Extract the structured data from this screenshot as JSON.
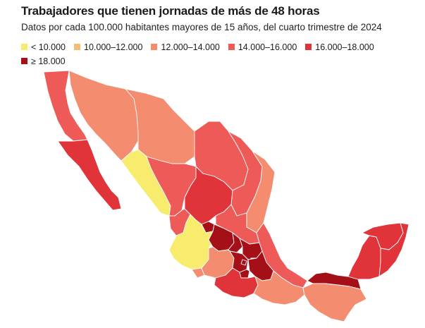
{
  "title": "Trabajadores que tienen jornadas de más de 48 horas",
  "subtitle": "Datos por cada 100.000 habitantes mayores de 15 años, del cuarto trimestre de 2024",
  "legend": [
    {
      "label": "< 10.000",
      "color": "#f7ec6e"
    },
    {
      "label": "10.000–12.000",
      "color": "#f6bb74"
    },
    {
      "label": "12.000–14.000",
      "color": "#f48d6f"
    },
    {
      "label": "14.000–16.000",
      "color": "#ee5a57"
    },
    {
      "label": "16.000–18.000",
      "color": "#e0333a"
    },
    {
      "label": "≥ 18.000",
      "color": "#a50f17"
    }
  ],
  "map": {
    "regions": [
      {
        "name": "baja-california",
        "class": "14.000–16.000",
        "color": "#ee5a57"
      },
      {
        "name": "baja-california-sur",
        "class": "16.000–18.000",
        "color": "#e0333a"
      },
      {
        "name": "sonora",
        "class": "12.000–14.000",
        "color": "#f48d6f"
      },
      {
        "name": "chihuahua",
        "class": "12.000–14.000",
        "color": "#f48d6f"
      },
      {
        "name": "coahuila",
        "class": "14.000–16.000",
        "color": "#ee5a57"
      },
      {
        "name": "nuevo-leon",
        "class": "14.000–16.000",
        "color": "#ee5a57"
      },
      {
        "name": "tamaulipas",
        "class": "12.000–14.000",
        "color": "#f48d6f"
      },
      {
        "name": "sinaloa",
        "class": "< 10.000",
        "color": "#f7ec6e"
      },
      {
        "name": "durango",
        "class": "14.000–16.000",
        "color": "#ee5a57"
      },
      {
        "name": "zacatecas",
        "class": "16.000–18.000",
        "color": "#e0333a"
      },
      {
        "name": "nayarit",
        "class": "14.000–16.000",
        "color": "#ee5a57"
      },
      {
        "name": "aguascalientes",
        "class": "≥ 18.000",
        "color": "#a50f17"
      },
      {
        "name": "san-luis-potosi",
        "class": "14.000–16.000",
        "color": "#ee5a57"
      },
      {
        "name": "jalisco",
        "class": "< 10.000",
        "color": "#f7ec6e"
      },
      {
        "name": "guanajuato",
        "class": "≥ 18.000",
        "color": "#a50f17"
      },
      {
        "name": "queretaro",
        "class": "≥ 18.000",
        "color": "#a50f17"
      },
      {
        "name": "hidalgo",
        "class": "≥ 18.000",
        "color": "#a50f17"
      },
      {
        "name": "veracruz",
        "class": "14.000–16.000",
        "color": "#ee5a57"
      },
      {
        "name": "colima",
        "class": "12.000–14.000",
        "color": "#f48d6f"
      },
      {
        "name": "michoacan",
        "class": "12.000–14.000",
        "color": "#f48d6f"
      },
      {
        "name": "estado-de-mexico",
        "class": "≥ 18.000",
        "color": "#a50f17"
      },
      {
        "name": "ciudad-de-mexico",
        "class": "≥ 18.000",
        "color": "#a50f17"
      },
      {
        "name": "tlaxcala",
        "class": "≥ 18.000",
        "color": "#a50f17"
      },
      {
        "name": "puebla",
        "class": "≥ 18.000",
        "color": "#a50f17"
      },
      {
        "name": "morelos",
        "class": "≥ 18.000",
        "color": "#a50f17"
      },
      {
        "name": "guerrero",
        "class": "16.000–18.000",
        "color": "#e0333a"
      },
      {
        "name": "oaxaca",
        "class": "12.000–14.000",
        "color": "#f48d6f"
      },
      {
        "name": "chiapas",
        "class": "12.000–14.000",
        "color": "#f48d6f"
      },
      {
        "name": "tabasco",
        "class": "≥ 18.000",
        "color": "#a50f17"
      },
      {
        "name": "campeche",
        "class": "16.000–18.000",
        "color": "#e0333a"
      },
      {
        "name": "yucatan",
        "class": "16.000–18.000",
        "color": "#e0333a"
      },
      {
        "name": "quintana-roo",
        "class": "16.000–18.000",
        "color": "#e0333a"
      }
    ]
  }
}
